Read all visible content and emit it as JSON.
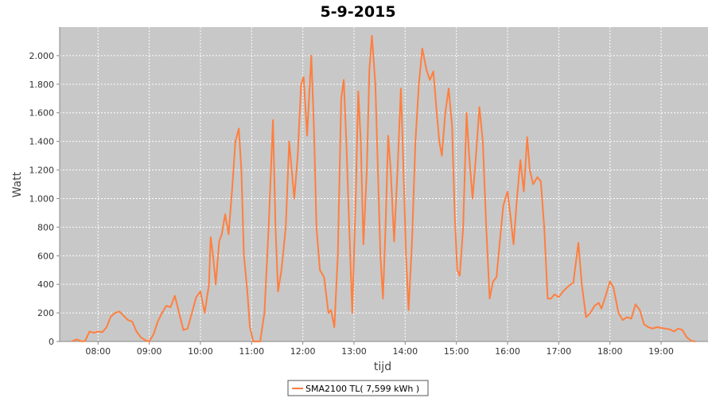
{
  "colors": {
    "series": "#ff7f3f",
    "plot_background": "#c8c8c8",
    "gridline": "#ffffff",
    "axis": "#888888"
  },
  "chart_data": {
    "type": "line",
    "title": "5-9-2015",
    "xlabel": "tijd",
    "ylabel": "Watt",
    "xlim": [
      "07:15",
      "19:55"
    ],
    "ylim": [
      0,
      2200
    ],
    "grid": true,
    "legend_position": "bottom",
    "x_ticks": [
      "08:00",
      "09:00",
      "10:00",
      "11:00",
      "12:00",
      "13:00",
      "14:00",
      "15:00",
      "16:00",
      "17:00",
      "18:00",
      "19:00"
    ],
    "y_ticks": [
      {
        "value": 0,
        "label": "0"
      },
      {
        "value": 200,
        "label": "200"
      },
      {
        "value": 400,
        "label": "400"
      },
      {
        "value": 600,
        "label": "600"
      },
      {
        "value": 800,
        "label": "800"
      },
      {
        "value": 1000,
        "label": "1.000"
      },
      {
        "value": 1200,
        "label": "1.200"
      },
      {
        "value": 1400,
        "label": "1.400"
      },
      {
        "value": 1600,
        "label": "1.600"
      },
      {
        "value": 1800,
        "label": "1.800"
      },
      {
        "value": 2000,
        "label": "2.000"
      }
    ],
    "series": [
      {
        "name": "SMA2100 TL( 7,599 kWh )",
        "color": "#ff7f3f",
        "points": [
          [
            "07:29",
            0
          ],
          [
            "07:35",
            15
          ],
          [
            "07:41",
            0
          ],
          [
            "07:45",
            5
          ],
          [
            "07:50",
            70
          ],
          [
            "07:55",
            60
          ],
          [
            "08:00",
            70
          ],
          [
            "08:05",
            65
          ],
          [
            "08:10",
            100
          ],
          [
            "08:15",
            175
          ],
          [
            "08:20",
            200
          ],
          [
            "08:25",
            210
          ],
          [
            "08:30",
            180
          ],
          [
            "08:35",
            150
          ],
          [
            "08:40",
            140
          ],
          [
            "08:45",
            70
          ],
          [
            "08:50",
            30
          ],
          [
            "08:55",
            10
          ],
          [
            "09:00",
            0
          ],
          [
            "09:05",
            50
          ],
          [
            "09:10",
            140
          ],
          [
            "09:15",
            200
          ],
          [
            "09:20",
            250
          ],
          [
            "09:25",
            240
          ],
          [
            "09:30",
            320
          ],
          [
            "09:35",
            200
          ],
          [
            "09:40",
            80
          ],
          [
            "09:45",
            90
          ],
          [
            "09:50",
            200
          ],
          [
            "09:55",
            310
          ],
          [
            "10:00",
            350
          ],
          [
            "10:05",
            200
          ],
          [
            "10:10",
            400
          ],
          [
            "10:12",
            730
          ],
          [
            "10:15",
            590
          ],
          [
            "10:18",
            400
          ],
          [
            "10:22",
            700
          ],
          [
            "10:25",
            750
          ],
          [
            "10:29",
            890
          ],
          [
            "10:33",
            750
          ],
          [
            "10:37",
            1050
          ],
          [
            "10:41",
            1400
          ],
          [
            "10:45",
            1490
          ],
          [
            "10:48",
            1200
          ],
          [
            "10:51",
            600
          ],
          [
            "10:55",
            350
          ],
          [
            "10:58",
            100
          ],
          [
            "11:02",
            0
          ],
          [
            "11:10",
            0
          ],
          [
            "11:15",
            200
          ],
          [
            "11:20",
            800
          ],
          [
            "11:25",
            1550
          ],
          [
            "11:28",
            800
          ],
          [
            "11:31",
            350
          ],
          [
            "11:35",
            500
          ],
          [
            "11:40",
            800
          ],
          [
            "11:44",
            1400
          ],
          [
            "11:47",
            1200
          ],
          [
            "11:50",
            1000
          ],
          [
            "11:54",
            1300
          ],
          [
            "11:58",
            1800
          ],
          [
            "12:01",
            1850
          ],
          [
            "12:05",
            1440
          ],
          [
            "12:10",
            2000
          ],
          [
            "12:13",
            1500
          ],
          [
            "12:16",
            800
          ],
          [
            "12:20",
            500
          ],
          [
            "12:25",
            450
          ],
          [
            "12:30",
            200
          ],
          [
            "12:33",
            220
          ],
          [
            "12:37",
            100
          ],
          [
            "12:41",
            600
          ],
          [
            "12:45",
            1700
          ],
          [
            "12:48",
            1830
          ],
          [
            "12:51",
            1400
          ],
          [
            "12:55",
            700
          ],
          [
            "12:58",
            200
          ],
          [
            "13:02",
            1000
          ],
          [
            "13:05",
            1750
          ],
          [
            "13:08",
            1400
          ],
          [
            "13:11",
            680
          ],
          [
            "13:15",
            1200
          ],
          [
            "13:18",
            1900
          ],
          [
            "13:21",
            2140
          ],
          [
            "13:25",
            1800
          ],
          [
            "13:28",
            1200
          ],
          [
            "13:31",
            600
          ],
          [
            "13:34",
            300
          ],
          [
            "13:37",
            800
          ],
          [
            "13:40",
            1440
          ],
          [
            "13:43",
            1200
          ],
          [
            "13:47",
            700
          ],
          [
            "13:51",
            1200
          ],
          [
            "13:55",
            1770
          ],
          [
            "13:58",
            1200
          ],
          [
            "14:01",
            600
          ],
          [
            "14:04",
            220
          ],
          [
            "14:08",
            700
          ],
          [
            "14:12",
            1400
          ],
          [
            "14:16",
            1800
          ],
          [
            "14:20",
            2050
          ],
          [
            "14:25",
            1900
          ],
          [
            "14:29",
            1830
          ],
          [
            "14:33",
            1890
          ],
          [
            "14:37",
            1600
          ],
          [
            "14:40",
            1400
          ],
          [
            "14:43",
            1300
          ],
          [
            "14:47",
            1600
          ],
          [
            "14:51",
            1770
          ],
          [
            "14:55",
            1500
          ],
          [
            "14:58",
            900
          ],
          [
            "15:01",
            500
          ],
          [
            "15:04",
            460
          ],
          [
            "15:08",
            800
          ],
          [
            "15:12",
            1600
          ],
          [
            "15:15",
            1300
          ],
          [
            "15:19",
            1000
          ],
          [
            "15:23",
            1300
          ],
          [
            "15:27",
            1640
          ],
          [
            "15:31",
            1400
          ],
          [
            "15:35",
            800
          ],
          [
            "15:39",
            300
          ],
          [
            "15:43",
            420
          ],
          [
            "15:47",
            450
          ],
          [
            "15:51",
            700
          ],
          [
            "15:55",
            950
          ],
          [
            "16:00",
            1050
          ],
          [
            "16:03",
            900
          ],
          [
            "16:07",
            680
          ],
          [
            "16:11",
            1000
          ],
          [
            "16:15",
            1270
          ],
          [
            "16:19",
            1050
          ],
          [
            "16:23",
            1430
          ],
          [
            "16:26",
            1200
          ],
          [
            "16:30",
            1100
          ],
          [
            "16:35",
            1150
          ],
          [
            "16:39",
            1120
          ],
          [
            "16:43",
            800
          ],
          [
            "16:47",
            300
          ],
          [
            "16:51",
            300
          ],
          [
            "16:55",
            330
          ],
          [
            "17:00",
            310
          ],
          [
            "17:05",
            350
          ],
          [
            "17:10",
            380
          ],
          [
            "17:14",
            400
          ],
          [
            "17:17",
            410
          ],
          [
            "17:20",
            550
          ],
          [
            "17:23",
            690
          ],
          [
            "17:27",
            400
          ],
          [
            "17:32",
            170
          ],
          [
            "17:37",
            200
          ],
          [
            "17:42",
            250
          ],
          [
            "17:47",
            270
          ],
          [
            "17:50",
            230
          ],
          [
            "17:55",
            320
          ],
          [
            "18:00",
            420
          ],
          [
            "18:04",
            380
          ],
          [
            "18:10",
            200
          ],
          [
            "18:15",
            150
          ],
          [
            "18:20",
            170
          ],
          [
            "18:25",
            160
          ],
          [
            "18:30",
            260
          ],
          [
            "18:35",
            220
          ],
          [
            "18:40",
            120
          ],
          [
            "18:45",
            100
          ],
          [
            "18:50",
            90
          ],
          [
            "18:55",
            100
          ],
          [
            "19:00",
            95
          ],
          [
            "19:05",
            90
          ],
          [
            "19:10",
            85
          ],
          [
            "19:15",
            70
          ],
          [
            "19:20",
            90
          ],
          [
            "19:25",
            80
          ],
          [
            "19:30",
            30
          ],
          [
            "19:35",
            5
          ],
          [
            "19:40",
            0
          ]
        ]
      }
    ]
  }
}
